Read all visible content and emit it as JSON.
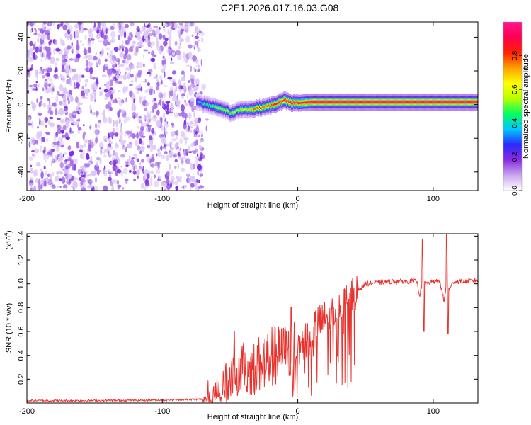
{
  "title": "C2E1.2026.017.16.03.G08",
  "chart_data": [
    {
      "type": "heatmap",
      "title": "C2E1.2026.017.16.03.G08",
      "xlabel": "Height of straight line (km)",
      "ylabel": "Frequency (Hz)",
      "xlim": [
        -200,
        133
      ],
      "ylim": [
        -51,
        49
      ],
      "xticks": [
        -200,
        -100,
        0,
        100
      ],
      "yticks": [
        -40,
        -20,
        0,
        20,
        40
      ],
      "colorbar": {
        "label": "Normalized spectral amplitude",
        "range": [
          0,
          1
        ],
        "ticks": [
          0.0,
          0.2,
          0.4,
          0.6,
          0.8
        ],
        "colormap": [
          "#ffffff",
          "#c9a6f0",
          "#8a2be2",
          "#2a2aff",
          "#00c8ff",
          "#00ff60",
          "#b8ff00",
          "#ffff00",
          "#ffa000",
          "#ff2000",
          "#ff0050",
          "#ff1493"
        ]
      },
      "noise_region_x": [
        -200,
        -70
      ],
      "signal_track": {
        "x": [
          -75,
          -70,
          -65,
          -60,
          -55,
          -50,
          -45,
          -40,
          -35,
          -30,
          -25,
          -20,
          -15,
          -10,
          -5,
          0,
          10,
          20,
          40,
          60,
          80,
          100,
          120,
          133
        ],
        "freq": [
          1.5,
          0.5,
          -0.5,
          -1.5,
          -3,
          -5,
          -3.5,
          -3,
          -3,
          -2,
          -1.5,
          -0.5,
          1,
          2.5,
          1,
          0.8,
          1.5,
          1.5,
          1.5,
          1.5,
          1.5,
          1.5,
          1.5,
          1.5
        ],
        "peak_amplitude": [
          0.35,
          0.45,
          0.5,
          0.55,
          0.55,
          0.6,
          0.6,
          0.65,
          0.7,
          0.75,
          0.8,
          0.85,
          0.9,
          0.95,
          0.95,
          1.0,
          1.0,
          1.0,
          1.0,
          1.0,
          1.0,
          1.0,
          1.0,
          1.0
        ]
      }
    },
    {
      "type": "line",
      "xlabel": "Height of straight line (km)",
      "ylabel": "SNR (10 * v/v)",
      "y_scale_label": "(x10",
      "y_scale_exponent": "4",
      "xlim": [
        -200,
        133
      ],
      "ylim": [
        0,
        1.42
      ],
      "xticks": [
        -200,
        -100,
        0,
        100
      ],
      "yticks": [
        0.2,
        0.4,
        0.6,
        0.8,
        1.0,
        1.2,
        1.4
      ],
      "series": [
        {
          "name": "SNR",
          "color": "#e8322d",
          "x": [
            -200,
            -150,
            -100,
            -80,
            -70,
            -65,
            -60,
            -55,
            -50,
            -45,
            -40,
            -35,
            -30,
            -25,
            -20,
            -15,
            -10,
            -5,
            0,
            5,
            10,
            15,
            20,
            25,
            30,
            35,
            40,
            45,
            50,
            60,
            70,
            80,
            88,
            90,
            92,
            95,
            100,
            105,
            108,
            110,
            112,
            115,
            120,
            125,
            133
          ],
          "y": [
            0.02,
            0.02,
            0.025,
            0.03,
            0.03,
            0.05,
            0.1,
            0.15,
            0.2,
            0.25,
            0.3,
            0.28,
            0.32,
            0.35,
            0.38,
            0.4,
            0.42,
            0.45,
            0.5,
            0.55,
            0.6,
            0.65,
            0.7,
            0.75,
            0.8,
            0.85,
            0.9,
            0.95,
            1.0,
            1.01,
            1.02,
            1.02,
            1.02,
            0.9,
            1.02,
            1.0,
            1.02,
            1.02,
            0.85,
            1.02,
            0.95,
            1.02,
            1.02,
            1.02,
            1.03
          ],
          "spikes": [
            {
              "x": 92,
              "y": 1.37
            },
            {
              "x": 93,
              "y": 0.6
            },
            {
              "x": 110,
              "y": 1.42
            },
            {
              "x": 111,
              "y": 0.58
            },
            {
              "x": -47,
              "y": 0.6
            },
            {
              "x": -5,
              "y": 0.8
            }
          ]
        }
      ]
    }
  ]
}
